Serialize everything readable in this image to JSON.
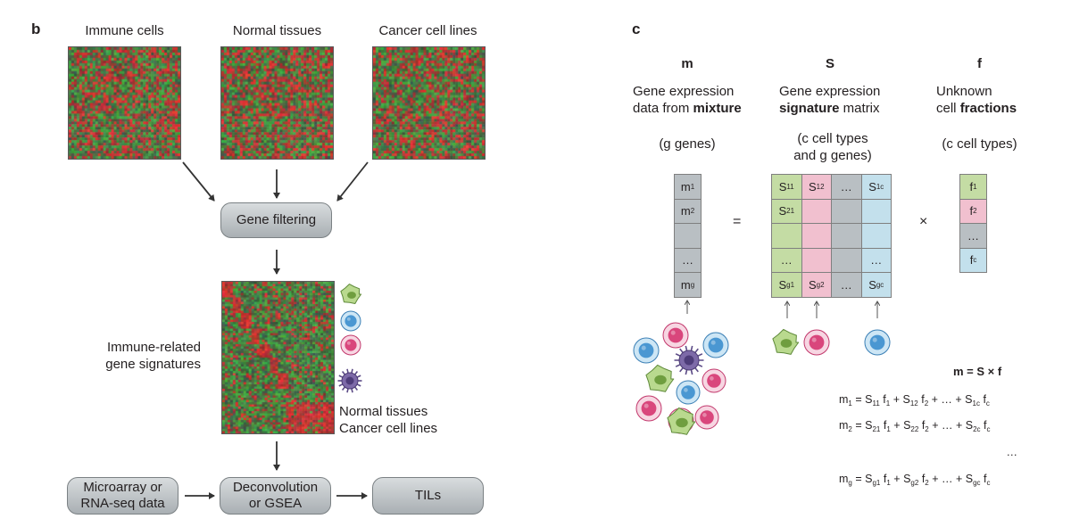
{
  "panel_b": {
    "label": "b",
    "sources": [
      "Immune cells",
      "Normal tissues",
      "Cancer cell lines"
    ],
    "gene_filtering": "Gene filtering",
    "signatures_label": "Immune-related\ngene signatures",
    "normal_cancer_label": "Normal tissues\nCancer cell lines",
    "input_box": "Microarray or\nRNA-seq data",
    "method_box": "Deconvolution\nor GSEA",
    "output_box": "TILs"
  },
  "panel_c": {
    "label": "c",
    "columns": [
      {
        "symbol": "m",
        "desc_plain": "Gene expression",
        "desc2_pre": "data from ",
        "desc2_bold": "mixture",
        "desc2_post": "",
        "dims": "(g genes)"
      },
      {
        "symbol": "S",
        "desc_plain": "Gene expression",
        "desc2_pre": "",
        "desc2_bold": "signature",
        "desc2_post": " matrix",
        "dims": "(c cell types\nand g genes)"
      },
      {
        "symbol": "f",
        "desc_plain": "Unknown",
        "desc2_pre": "cell ",
        "desc2_bold": "fractions",
        "desc2_post": "",
        "dims": "(c cell types)"
      }
    ],
    "m_cells": [
      [
        "m",
        "1"
      ],
      [
        "m",
        "2"
      ],
      [
        "",
        ""
      ],
      [
        "…",
        ""
      ],
      [
        "m",
        "g"
      ]
    ],
    "f_cells": [
      [
        "f",
        "1"
      ],
      [
        "f",
        "2"
      ],
      [
        "…",
        ""
      ],
      [
        "f",
        "c"
      ]
    ],
    "S_cells": [
      [
        [
          "S",
          "11"
        ],
        [
          "S",
          "12"
        ],
        [
          "…",
          ""
        ],
        [
          "S",
          "1c"
        ]
      ],
      [
        [
          "S",
          "21"
        ],
        [
          "",
          ""
        ],
        [
          "",
          ""
        ],
        [
          "",
          ""
        ]
      ],
      [
        [
          "",
          ""
        ],
        [
          "",
          ""
        ],
        [
          "",
          ""
        ],
        [
          "",
          ""
        ]
      ],
      [
        [
          "…",
          ""
        ],
        [
          "",
          ""
        ],
        [
          "",
          ""
        ],
        [
          "…",
          ""
        ]
      ],
      [
        [
          "S",
          "g1"
        ],
        [
          "S",
          "g2"
        ],
        [
          "…",
          ""
        ],
        [
          "S",
          "gc"
        ]
      ]
    ],
    "equals": "=",
    "times": "×",
    "formula": "m = S × f",
    "equations": [
      [
        [
          "m",
          "1"
        ],
        [
          "= S",
          "11"
        ],
        [
          "f",
          "1"
        ],
        [
          "+ S",
          "12"
        ],
        [
          "f",
          "2"
        ],
        [
          "+ … + S",
          "1c"
        ],
        [
          "f",
          "c"
        ]
      ],
      [
        [
          "m",
          "2"
        ],
        [
          "= S",
          "21"
        ],
        [
          "f",
          "1"
        ],
        [
          "+ S",
          "22"
        ],
        [
          "f",
          "2"
        ],
        [
          "+ … + S",
          "2c"
        ],
        [
          "f",
          "c"
        ]
      ],
      [
        [
          "…",
          ""
        ]
      ],
      [
        [
          "m",
          "g"
        ],
        [
          "= S",
          "g1"
        ],
        [
          "f",
          "1"
        ],
        [
          "+ S",
          "g2"
        ],
        [
          "f",
          "2"
        ],
        [
          "+ … + S",
          "gc"
        ],
        [
          "f",
          "c"
        ]
      ]
    ],
    "colors": {
      "green": "#c4dca4",
      "pink": "#f1c0cf",
      "grey": "#b9bfc3",
      "blue": "#c3e0ec",
      "border": "#7f7f7f"
    }
  },
  "icons": [
    "green-cell-icon",
    "blue-cell-icon",
    "pink-cell-icon",
    "purple-cell-icon"
  ]
}
